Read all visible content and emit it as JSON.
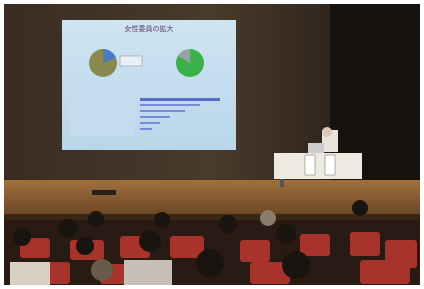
{
  "slide": {
    "title": "女性委員の拡大"
  }
}
